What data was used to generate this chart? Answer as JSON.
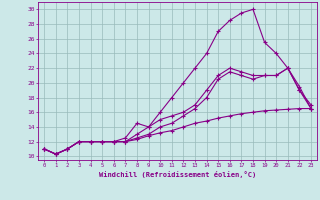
{
  "xlabel": "Windchill (Refroidissement éolien,°C)",
  "bg_color": "#cce8e8",
  "line_color": "#880088",
  "grid_color": "#99bbbb",
  "xlim": [
    -0.5,
    23.5
  ],
  "ylim": [
    9.5,
    31.0
  ],
  "xticks": [
    0,
    1,
    2,
    3,
    4,
    5,
    6,
    7,
    8,
    9,
    10,
    11,
    12,
    13,
    14,
    15,
    16,
    17,
    18,
    19,
    20,
    21,
    22,
    23
  ],
  "yticks": [
    10,
    12,
    14,
    16,
    18,
    20,
    22,
    24,
    26,
    28,
    30
  ],
  "line1_x": [
    0,
    1,
    2,
    3,
    4,
    5,
    6,
    7,
    8,
    9,
    10,
    11,
    12,
    13,
    14,
    15,
    16,
    17,
    18,
    19,
    20,
    21,
    22,
    23
  ],
  "line1_y": [
    11,
    10.3,
    11,
    12,
    12,
    12,
    12,
    12,
    12.3,
    12.8,
    13.2,
    13.5,
    14.0,
    14.5,
    14.8,
    15.2,
    15.5,
    15.8,
    16.0,
    16.2,
    16.3,
    16.4,
    16.5,
    16.5
  ],
  "line2_x": [
    0,
    1,
    2,
    3,
    4,
    5,
    6,
    7,
    8,
    9,
    10,
    11,
    12,
    13,
    14,
    15,
    16,
    17,
    18,
    19,
    20,
    21,
    22,
    23
  ],
  "line2_y": [
    11,
    10.3,
    11,
    12,
    12,
    12,
    12,
    12.5,
    14.5,
    14,
    15,
    15.5,
    16,
    17,
    19,
    21,
    22,
    21.5,
    21,
    21,
    21,
    22,
    19,
    16.5
  ],
  "line3_x": [
    0,
    1,
    2,
    3,
    4,
    5,
    6,
    7,
    8,
    9,
    10,
    11,
    12,
    13,
    14,
    15,
    16,
    17,
    18,
    19,
    20,
    21,
    22,
    23
  ],
  "line3_y": [
    11,
    10.3,
    11,
    12,
    12,
    12,
    12,
    12,
    13,
    14,
    16,
    18,
    20,
    22,
    24,
    27,
    28.5,
    29.5,
    30,
    25.5,
    24,
    22,
    19,
    17
  ],
  "line4_x": [
    0,
    1,
    2,
    3,
    4,
    5,
    6,
    7,
    8,
    9,
    10,
    11,
    12,
    13,
    14,
    15,
    16,
    17,
    18,
    19,
    20,
    21,
    22,
    23
  ],
  "line4_y": [
    11,
    10.3,
    11,
    12,
    12,
    12,
    12,
    12,
    12.5,
    13,
    14,
    14.5,
    15.5,
    16.5,
    18,
    20.5,
    21.5,
    21,
    20.5,
    21,
    21,
    22,
    19.5,
    16.5
  ]
}
